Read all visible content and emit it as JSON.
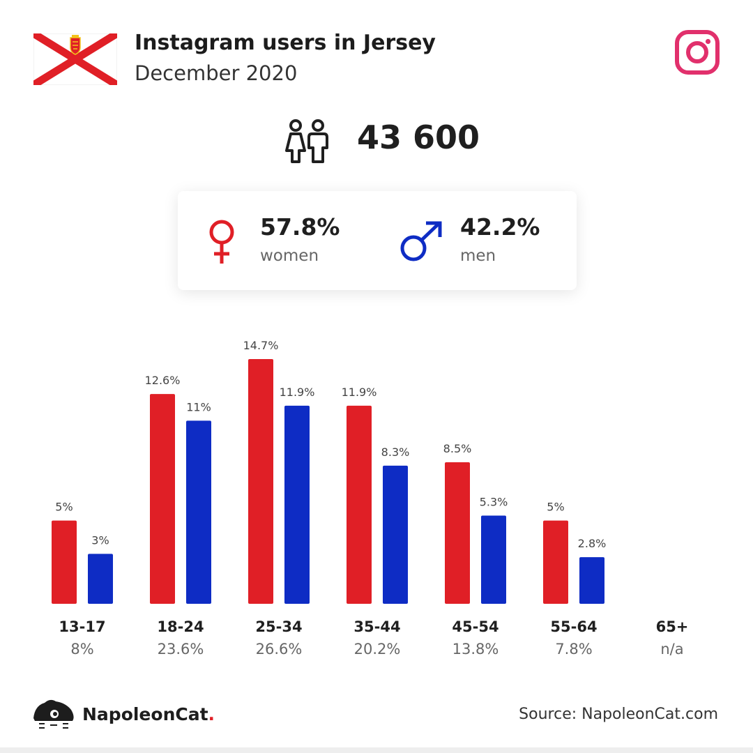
{
  "header": {
    "title": "Instagram users in Jersey",
    "subtitle": "December 2020",
    "flag_icon": "jersey-flag-icon",
    "platform_icon": "instagram-icon"
  },
  "total": {
    "value": "43 600",
    "icon": "users-icon"
  },
  "gender": {
    "women": {
      "pct": "57.8%",
      "label": "women",
      "icon": "female-icon"
    },
    "men": {
      "pct": "42.2%",
      "label": "men",
      "icon": "male-icon"
    }
  },
  "colors": {
    "women": "#e01f26",
    "men": "#0e2cc4",
    "instagram": "#e1306c",
    "flag_red": "#e01f26"
  },
  "chart_data": {
    "type": "bar",
    "categories": [
      "13-17",
      "18-24",
      "25-34",
      "35-44",
      "45-54",
      "55-64",
      "65+"
    ],
    "category_totals": [
      "8%",
      "23.6%",
      "26.6%",
      "20.2%",
      "13.8%",
      "7.8%",
      "n/a"
    ],
    "series": [
      {
        "name": "women",
        "values": [
          5,
          12.6,
          14.7,
          11.9,
          8.5,
          5,
          null
        ],
        "labels": [
          "5%",
          "12.6%",
          "14.7%",
          "11.9%",
          "8.5%",
          "5%",
          ""
        ]
      },
      {
        "name": "men",
        "values": [
          3,
          11,
          11.9,
          8.3,
          5.3,
          2.8,
          null
        ],
        "labels": [
          "3%",
          "11%",
          "11.9%",
          "8.3%",
          "5.3%",
          "2.8%",
          ""
        ]
      }
    ],
    "ylim": [
      0,
      14.7
    ],
    "grid": false,
    "legend": "none"
  },
  "footer": {
    "brand": "NapoleonCat",
    "brand_dot": ".",
    "source": "Source: NapoleonCat.com",
    "logo_icon": "napoleoncat-logo-icon"
  }
}
